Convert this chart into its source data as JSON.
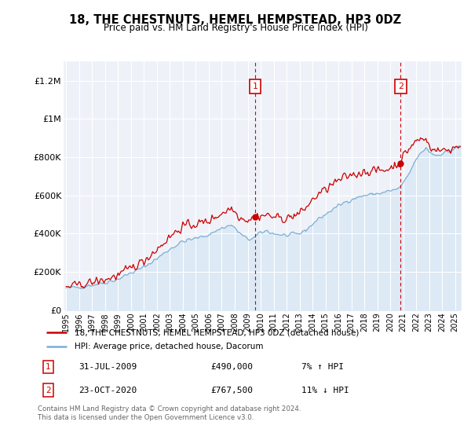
{
  "title": "18, THE CHESTNUTS, HEMEL HEMPSTEAD, HP3 0DZ",
  "subtitle": "Price paid vs. HM Land Registry's House Price Index (HPI)",
  "legend_line1": "18, THE CHESTNUTS, HEMEL HEMPSTEAD, HP3 0DZ (detached house)",
  "legend_line2": "HPI: Average price, detached house, Dacorum",
  "annotation1_label": "1",
  "annotation1_date": "31-JUL-2009",
  "annotation1_value": "£490,000",
  "annotation1_hpi": "7% ↑ HPI",
  "annotation2_label": "2",
  "annotation2_date": "23-OCT-2020",
  "annotation2_value": "£767,500",
  "annotation2_hpi": "11% ↓ HPI",
  "footnote": "Contains HM Land Registry data © Crown copyright and database right 2024.\nThis data is licensed under the Open Government Licence v3.0.",
  "price_color": "#cc0000",
  "hpi_color": "#7bafd4",
  "hpi_fill_color": "#dde9f5",
  "background_color": "#ffffff",
  "plot_bg_color": "#eef2f8",
  "annotation_box_color": "#cc0000",
  "vline_color": "#cc0000",
  "ylim": [
    0,
    1300000
  ],
  "yticks": [
    0,
    200000,
    400000,
    600000,
    800000,
    1000000,
    1200000
  ],
  "ytick_labels": [
    "£0",
    "£200K",
    "£400K",
    "£600K",
    "£800K",
    "£1M",
    "£1.2M"
  ],
  "marker1_date_num": 2009.578,
  "marker1_value": 490000,
  "marker2_date_num": 2020.806,
  "marker2_value": 767500,
  "xmin": 1994.8,
  "xmax": 2025.5
}
